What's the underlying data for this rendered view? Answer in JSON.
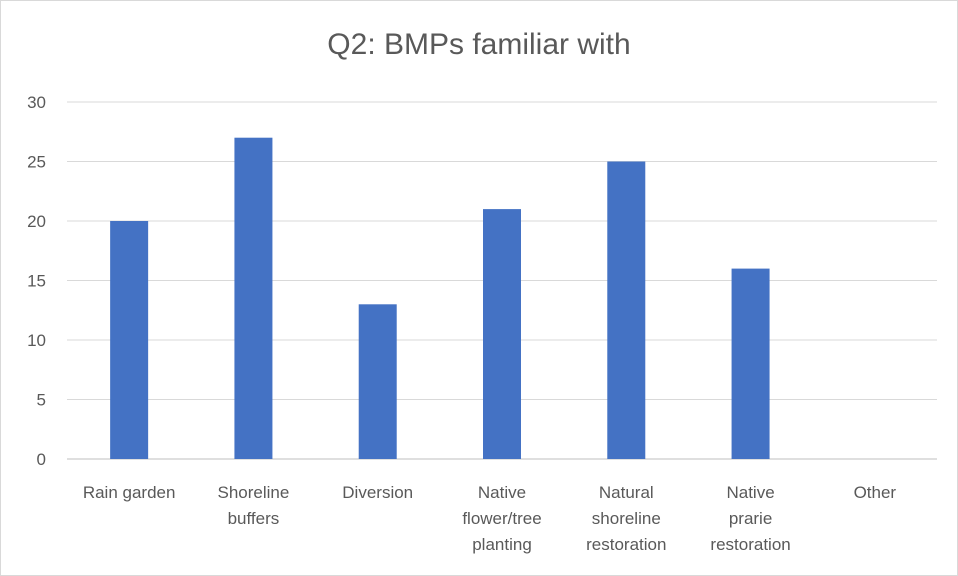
{
  "chart_data": {
    "type": "bar",
    "title": "Q2: BMPs familiar with",
    "xlabel": "",
    "ylabel": "",
    "categories": [
      [
        "Rain garden"
      ],
      [
        "Shoreline",
        "buffers"
      ],
      [
        "Diversion"
      ],
      [
        "Native",
        "flower/tree",
        "planting"
      ],
      [
        "Natural",
        "shoreline",
        "restoration"
      ],
      [
        "Native",
        "prarie",
        "restoration"
      ],
      [
        "Other"
      ]
    ],
    "values": [
      20,
      27,
      13,
      21,
      25,
      16,
      0
    ],
    "ylim": [
      0,
      30
    ],
    "yticks": [
      0,
      5,
      10,
      15,
      20,
      25,
      30
    ],
    "grid": true,
    "bar_color": "#4472c4",
    "grid_color": "#d9d9d9"
  }
}
